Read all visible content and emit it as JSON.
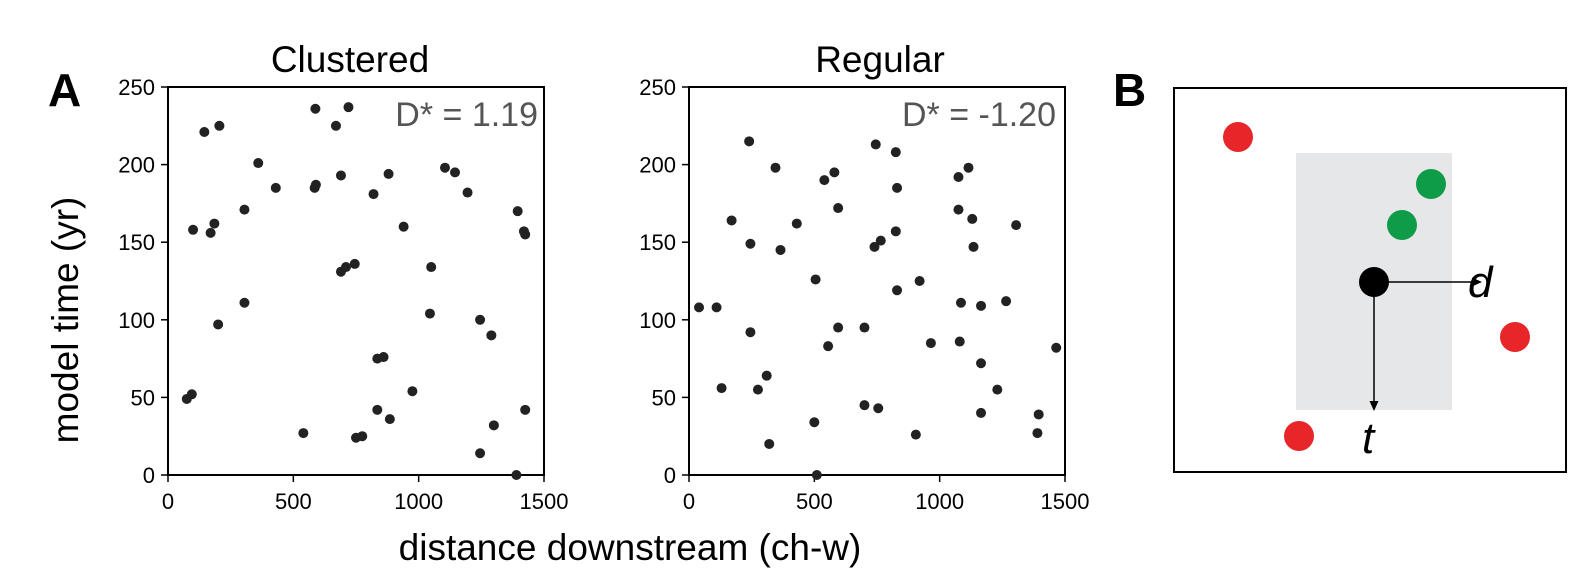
{
  "panel_labels": {
    "a": "A",
    "b": "B"
  },
  "shared": {
    "xlabel": "distance downstream (ch-w)",
    "ylabel": "model time (yr)"
  },
  "chart_data": [
    {
      "type": "scatter",
      "title": "Clustered",
      "annotation": "D* = 1.19",
      "xlim": [
        0,
        1500
      ],
      "ylim": [
        0,
        250
      ],
      "xticks": [
        "0",
        "500",
        "1000",
        "1500"
      ],
      "yticks": [
        "0",
        "50",
        "100",
        "150",
        "200",
        "250"
      ],
      "point_color": "#222222",
      "points": [
        [
          588,
          236
        ],
        [
          720,
          237
        ],
        [
          670,
          225
        ],
        [
          145,
          221
        ],
        [
          205,
          225
        ],
        [
          360,
          201
        ],
        [
          430,
          185
        ],
        [
          585,
          185
        ],
        [
          590,
          187
        ],
        [
          690,
          193
        ],
        [
          820,
          181
        ],
        [
          880,
          194
        ],
        [
          1105,
          198
        ],
        [
          1145,
          195
        ],
        [
          1195,
          182
        ],
        [
          305,
          171
        ],
        [
          1395,
          170
        ],
        [
          100,
          158
        ],
        [
          170,
          156
        ],
        [
          185,
          162
        ],
        [
          940,
          160
        ],
        [
          1420,
          157
        ],
        [
          1425,
          155
        ],
        [
          690,
          131
        ],
        [
          710,
          134
        ],
        [
          745,
          136
        ],
        [
          1050,
          134
        ],
        [
          305,
          111
        ],
        [
          1045,
          104
        ],
        [
          200,
          97
        ],
        [
          1245,
          100
        ],
        [
          1290,
          90
        ],
        [
          835,
          75
        ],
        [
          860,
          76
        ],
        [
          975,
          54
        ],
        [
          75,
          49
        ],
        [
          95,
          52
        ],
        [
          835,
          42
        ],
        [
          885,
          36
        ],
        [
          1425,
          42
        ],
        [
          540,
          27
        ],
        [
          750,
          24
        ],
        [
          775,
          25
        ],
        [
          1300,
          32
        ],
        [
          1245,
          14
        ],
        [
          1390,
          0
        ]
      ]
    },
    {
      "type": "scatter",
      "title": "Regular",
      "annotation": "D* = -1.20",
      "xlim": [
        0,
        1500
      ],
      "ylim": [
        0,
        250
      ],
      "xticks": [
        "0",
        "500",
        "1000",
        "1500"
      ],
      "yticks": [
        "0",
        "50",
        "100",
        "150",
        "200",
        "250"
      ],
      "point_color": "#222222",
      "points": [
        [
          240,
          215
        ],
        [
          745,
          213
        ],
        [
          825,
          208
        ],
        [
          345,
          198
        ],
        [
          540,
          190
        ],
        [
          580,
          195
        ],
        [
          1075,
          192
        ],
        [
          1115,
          198
        ],
        [
          170,
          164
        ],
        [
          430,
          162
        ],
        [
          595,
          172
        ],
        [
          830,
          185
        ],
        [
          1075,
          171
        ],
        [
          1130,
          165
        ],
        [
          1305,
          161
        ],
        [
          245,
          149
        ],
        [
          365,
          145
        ],
        [
          740,
          147
        ],
        [
          765,
          151
        ],
        [
          825,
          157
        ],
        [
          1135,
          147
        ],
        [
          40,
          108
        ],
        [
          110,
          108
        ],
        [
          505,
          126
        ],
        [
          830,
          119
        ],
        [
          920,
          125
        ],
        [
          1085,
          111
        ],
        [
          1165,
          109
        ],
        [
          1265,
          112
        ],
        [
          245,
          92
        ],
        [
          555,
          83
        ],
        [
          595,
          95
        ],
        [
          700,
          95
        ],
        [
          965,
          85
        ],
        [
          1080,
          86
        ],
        [
          1465,
          82
        ],
        [
          1165,
          72
        ],
        [
          130,
          56
        ],
        [
          275,
          55
        ],
        [
          310,
          64
        ],
        [
          1230,
          55
        ],
        [
          700,
          45
        ],
        [
          755,
          43
        ],
        [
          1165,
          40
        ],
        [
          1395,
          39
        ],
        [
          320,
          20
        ],
        [
          500,
          34
        ],
        [
          905,
          26
        ],
        [
          1390,
          27
        ],
        [
          510,
          0
        ]
      ]
    }
  ],
  "diagram": {
    "colors": {
      "red": "#e8262a",
      "green": "#0e9c48",
      "black": "#000000",
      "window": "#e6e7e8"
    },
    "labels": {
      "distance": "d",
      "time": "t"
    }
  }
}
